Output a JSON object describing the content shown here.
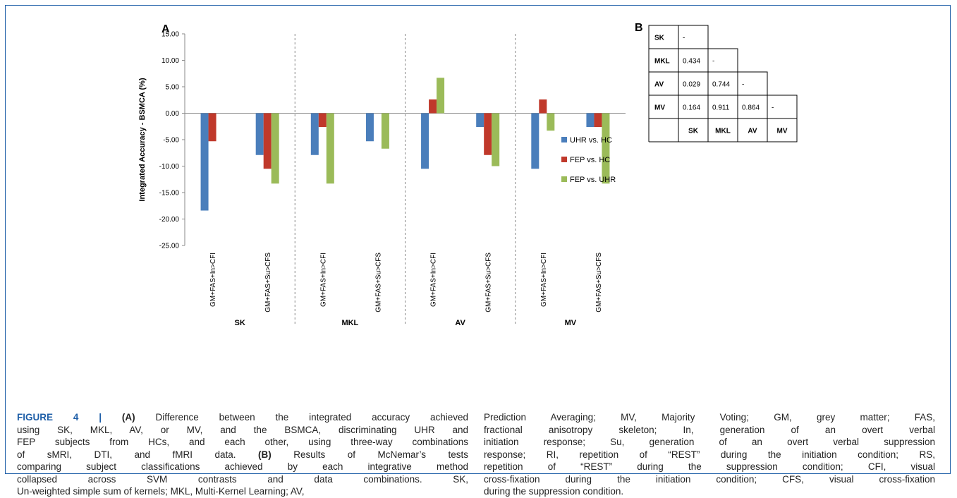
{
  "chart_data": [
    {
      "type": "bar",
      "panel": "A",
      "ylabel": "Integrated Accuracy - BSMCA (%)",
      "ylim": [
        -25,
        15
      ],
      "yticks": [
        "15.00",
        "10.00",
        "5.00",
        "0.00",
        "-5.00",
        "-10.00",
        "-15.00",
        "-20.00",
        "-25.00"
      ],
      "groups": [
        "SK",
        "MKL",
        "AV",
        "MV"
      ],
      "categories": [
        "GM+FAS+In>CFI",
        "GM+FAS+Su>CFS",
        "GM+FAS+In>CFI",
        "GM+FAS+Su>CFS",
        "GM+FAS+In>CFI",
        "GM+FAS+Su>CFS",
        "GM+FAS+In>CFI",
        "GM+FAS+Su>CFS"
      ],
      "series": [
        {
          "name": "UHR vs. HC",
          "color": "#4a7ebb",
          "values": [
            -18.4,
            -7.9,
            -7.9,
            -5.3,
            -10.5,
            -2.6,
            -10.5,
            -2.6
          ]
        },
        {
          "name": "FEP vs. HC",
          "color": "#c0392b",
          "values": [
            -5.3,
            -10.5,
            -2.6,
            0,
            2.6,
            -7.9,
            2.6,
            -2.6
          ]
        },
        {
          "name": "FEP vs. UHR",
          "color": "#9bbb59",
          "values": [
            0,
            -13.3,
            -13.3,
            -6.7,
            6.7,
            -10.0,
            -3.3,
            -13.3
          ]
        }
      ],
      "grid": false,
      "legend": "right"
    },
    {
      "type": "table",
      "panel": "B",
      "row_labels": [
        "SK",
        "MKL",
        "AV",
        "MV"
      ],
      "col_labels": [
        "SK",
        "MKL",
        "AV",
        "MV"
      ],
      "cells": [
        [
          "-"
        ],
        [
          "0.434",
          "-"
        ],
        [
          "0.029",
          "0.744",
          "-"
        ],
        [
          "0.164",
          "0.911",
          "0.864",
          "-"
        ]
      ]
    }
  ],
  "caption": {
    "figure_label": "FIGURE 4 | ",
    "left_lines": [
      [
        {
          "t": "(A)",
          "b": true
        },
        {
          "t": " Difference between the integrated accuracy achieved"
        }
      ],
      [
        {
          "t": "using SK, MKL, AV, or MV, and the BSMCA, discriminating UHR and"
        }
      ],
      [
        {
          "t": "FEP subjects from HCs, and each other, using three-way combinations"
        }
      ],
      [
        {
          "t": "of sMRI, DTI, and fMRI data. "
        },
        {
          "t": "(B)",
          "b": true
        },
        {
          "t": " Results of McNemar’s tests"
        }
      ],
      [
        {
          "t": "comparing subject classifications achieved by each integrative method"
        }
      ],
      [
        {
          "t": "collapsed across SVM contrasts and data combinations. SK,"
        }
      ],
      [
        {
          "t": "Un-weighted simple sum of kernels; MKL, Multi-Kernel Learning; AV,"
        }
      ]
    ],
    "right_lines": [
      [
        {
          "t": "Prediction Averaging; MV, Majority Voting; GM, grey matter; FAS,"
        }
      ],
      [
        {
          "t": "fractional anisotropy skeleton; In, generation of an overt verbal"
        }
      ],
      [
        {
          "t": "initiation response; Su, generation of an overt verbal suppression"
        }
      ],
      [
        {
          "t": "response; RI, repetition of “REST” during the initiation condition; RS,"
        }
      ],
      [
        {
          "t": "repetition of “REST” during the suppression condition; CFI, visual"
        }
      ],
      [
        {
          "t": "cross-fixation during the initiation condition; CFS, visual cross-fixation"
        }
      ],
      [
        {
          "t": "during the suppression condition."
        }
      ]
    ]
  }
}
